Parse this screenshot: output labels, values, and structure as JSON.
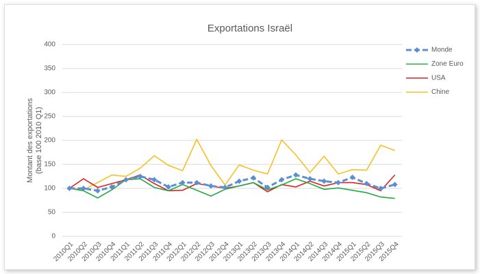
{
  "chart_data": {
    "type": "line",
    "title": "Exportations Israël",
    "ylabel": [
      "Montant des exportations",
      "(base 100 2010 Q1)"
    ],
    "categories": [
      "2010Q1",
      "2010Q2",
      "2010Q3",
      "2010Q4",
      "2011Q1",
      "2011Q2",
      "2011Q3",
      "2011Q4",
      "2012Q1",
      "2012Q2",
      "2012Q3",
      "2012Q4",
      "2013Q1",
      "2013Q2",
      "2013Q3",
      "2013Q4",
      "2014Q1",
      "2014Q2",
      "2014Q3",
      "2014Q4",
      "2015Q1",
      "2015Q2",
      "2015Q3",
      "2015Q4"
    ],
    "series": [
      {
        "name": "Monde",
        "color": "#5b8fd0",
        "dashed": true,
        "markers": true,
        "values": [
          100,
          100,
          95,
          103,
          118,
          125,
          118,
          103,
          112,
          112,
          105,
          102,
          115,
          122,
          102,
          118,
          128,
          120,
          115,
          112,
          123,
          110,
          100,
          108
        ]
      },
      {
        "name": "Zone Euro",
        "color": "#22a845",
        "values": [
          100,
          95,
          80,
          97,
          118,
          120,
          102,
          95,
          108,
          96,
          84,
          98,
          105,
          112,
          97,
          107,
          120,
          110,
          98,
          101,
          96,
          91,
          82,
          79
        ]
      },
      {
        "name": "USA",
        "color": "#e0201c",
        "values": [
          100,
          120,
          102,
          110,
          118,
          128,
          110,
          95,
          96,
          110,
          105,
          100,
          105,
          112,
          93,
          108,
          103,
          115,
          105,
          112,
          112,
          108,
          95,
          128
        ]
      },
      {
        "name": "Chine",
        "color": "#f5c122",
        "values": [
          100,
          97,
          112,
          128,
          125,
          142,
          168,
          148,
          137,
          202,
          148,
          107,
          149,
          138,
          130,
          201,
          170,
          133,
          167,
          130,
          139,
          138,
          190,
          179
        ]
      }
    ],
    "ylim": [
      0,
      400
    ],
    "yticks": [
      0,
      50,
      100,
      150,
      200,
      250,
      300,
      350,
      400
    ],
    "grid": true,
    "legend": "right"
  }
}
